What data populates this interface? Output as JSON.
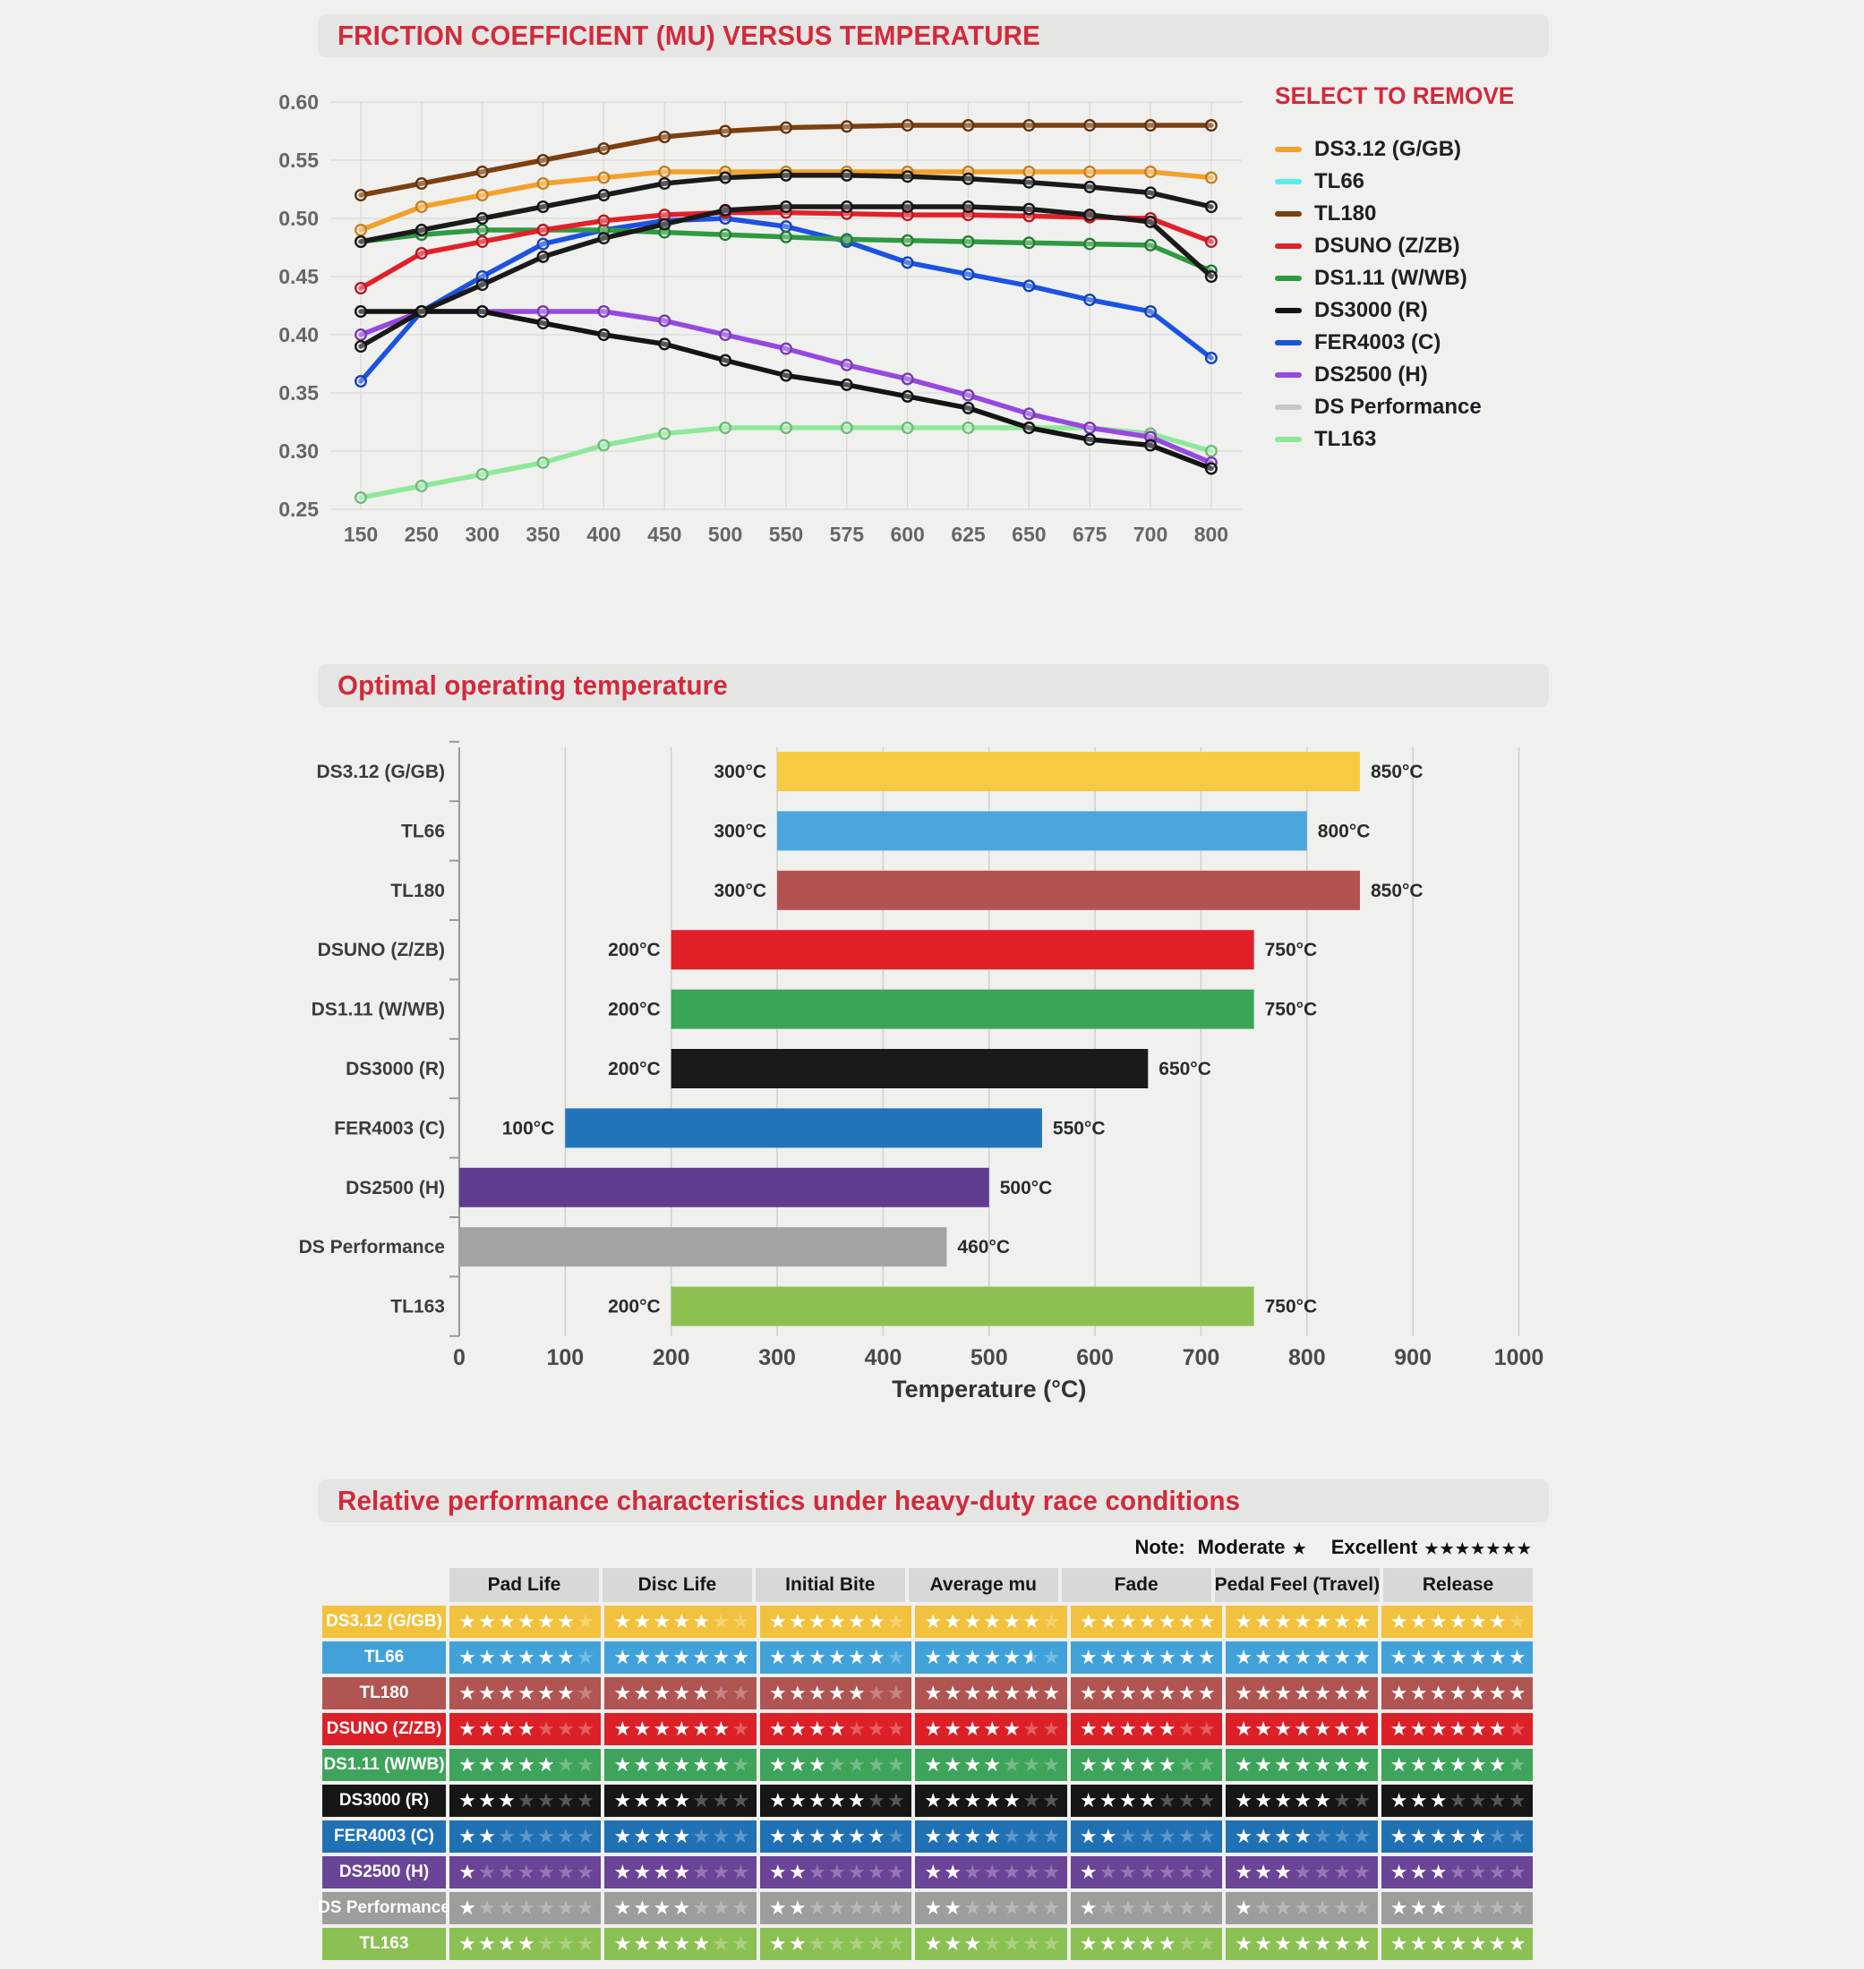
{
  "page": {
    "background": "#f0f0ef",
    "accent_red": "#d2293b",
    "banner_gray": "#e5e5e3"
  },
  "legend": {
    "title": "SELECT TO REMOVE"
  },
  "chart_data": [
    {
      "type": "line",
      "title": "FRICTION COEFFICIENT (MU) VERSUS TEMPERATURE",
      "legend_title": "SELECT TO REMOVE",
      "legend_position": "right",
      "grid": true,
      "xlabel": "",
      "ylabel": "",
      "x_categories": [
        150,
        250,
        300,
        350,
        400,
        450,
        500,
        550,
        575,
        600,
        625,
        650,
        675,
        700,
        800
      ],
      "ylim": [
        0.25,
        0.6
      ],
      "yticks": [
        0.6,
        0.55,
        0.5,
        0.45,
        0.4,
        0.35,
        0.3,
        0.25
      ],
      "series": [
        {
          "name": "DS3.12 (G/GB)",
          "legend_color": "#F4A12C",
          "line_color": "#F4A12C",
          "values": [
            0.49,
            0.51,
            0.52,
            0.53,
            0.535,
            0.54,
            0.54,
            0.54,
            0.54,
            0.54,
            0.54,
            0.54,
            0.54,
            0.54,
            0.535
          ]
        },
        {
          "name": "TL66",
          "legend_color": "#55EFEA",
          "line_color": "#1A1A1A",
          "values": [
            0.48,
            0.49,
            0.5,
            0.51,
            0.52,
            0.53,
            0.535,
            0.537,
            0.537,
            0.536,
            0.534,
            0.531,
            0.527,
            0.522,
            0.51
          ]
        },
        {
          "name": "TL180",
          "legend_color": "#7C400F",
          "line_color": "#7C400F",
          "values": [
            0.52,
            0.53,
            0.54,
            0.55,
            0.56,
            0.57,
            0.575,
            0.578,
            0.579,
            0.58,
            0.58,
            0.58,
            0.58,
            0.58,
            0.58
          ]
        },
        {
          "name": "DSUNO (Z/ZB)",
          "legend_color": "#E2202A",
          "line_color": "#E2202A",
          "values": [
            0.44,
            0.47,
            0.48,
            0.49,
            0.498,
            0.503,
            0.505,
            0.505,
            0.504,
            0.503,
            0.503,
            0.502,
            0.501,
            0.5,
            0.48
          ]
        },
        {
          "name": "DS1.11 (W/WB)",
          "legend_color": "#2E9A41",
          "line_color": "#2E9A41",
          "values": [
            0.48,
            0.486,
            0.49,
            0.49,
            0.49,
            0.488,
            0.486,
            0.484,
            0.482,
            0.481,
            0.48,
            0.479,
            0.478,
            0.477,
            0.455
          ]
        },
        {
          "name": "DS3000 (R)",
          "legend_color": "#141414",
          "line_color": "#141414",
          "values": [
            0.42,
            0.42,
            0.42,
            0.41,
            0.4,
            0.392,
            0.378,
            0.365,
            0.357,
            0.347,
            0.337,
            0.32,
            0.31,
            0.305,
            0.285
          ]
        },
        {
          "name": "FER4003 (C)",
          "legend_color": "#1C52E2",
          "line_color": "#1C52E2",
          "values": [
            0.36,
            0.42,
            0.45,
            0.478,
            0.49,
            0.498,
            0.5,
            0.493,
            0.48,
            0.462,
            0.452,
            0.442,
            0.43,
            0.42,
            0.38
          ]
        },
        {
          "name": "DS2500 (H)",
          "legend_color": "#9549E0",
          "line_color": "#9549E0",
          "values": [
            0.4,
            0.42,
            0.42,
            0.42,
            0.42,
            0.412,
            0.4,
            0.388,
            0.374,
            0.362,
            0.348,
            0.332,
            0.32,
            0.312,
            0.29
          ]
        },
        {
          "name": "DS Performance",
          "legend_color": "#C7C7C7",
          "line_color": "#1A1A1A",
          "values": [
            0.39,
            0.42,
            0.443,
            0.467,
            0.483,
            0.495,
            0.507,
            0.51,
            0.51,
            0.51,
            0.51,
            0.508,
            0.503,
            0.497,
            0.45
          ]
        },
        {
          "name": "TL163",
          "legend_color": "#8FE89A",
          "line_color": "#8FE89A",
          "values": [
            0.26,
            0.27,
            0.28,
            0.29,
            0.305,
            0.315,
            0.32,
            0.32,
            0.32,
            0.32,
            0.32,
            0.32,
            0.32,
            0.315,
            0.3
          ]
        }
      ]
    },
    {
      "type": "bar",
      "orientation": "horizontal",
      "title": "Optimal operating temperature",
      "xlabel": "Temperature (°C)",
      "xlim": [
        0,
        1000
      ],
      "xticks": [
        0,
        100,
        200,
        300,
        400,
        500,
        600,
        700,
        800,
        900,
        1000
      ],
      "grid": true,
      "bars": [
        {
          "name": "DS3.12 (G/GB)",
          "color": "#F7CB40",
          "start": 300,
          "end": 850,
          "start_label": "300°C",
          "end_label": "850°C"
        },
        {
          "name": "TL66",
          "color": "#4BA6DB",
          "start": 300,
          "end": 800,
          "start_label": "300°C",
          "end_label": "800°C"
        },
        {
          "name": "TL180",
          "color": "#B35351",
          "start": 300,
          "end": 850,
          "start_label": "300°C",
          "end_label": "850°C"
        },
        {
          "name": "DSUNO (Z/ZB)",
          "color": "#E01F26",
          "start": 200,
          "end": 750,
          "start_label": "200°C",
          "end_label": "750°C"
        },
        {
          "name": "DS1.11 (W/WB)",
          "color": "#3BA557",
          "start": 200,
          "end": 750,
          "start_label": "200°C",
          "end_label": "750°C"
        },
        {
          "name": "DS3000 (R)",
          "color": "#1A1A1A",
          "start": 200,
          "end": 650,
          "start_label": "200°C",
          "end_label": "650°C"
        },
        {
          "name": "FER4003 (C)",
          "color": "#2274B8",
          "start": 100,
          "end": 550,
          "start_label": "100°C",
          "end_label": "550°C"
        },
        {
          "name": "DS2500 (H)",
          "color": "#5F3C90",
          "start": 0,
          "end": 500,
          "start_label": "",
          "end_label": "500°C"
        },
        {
          "name": "DS Performance",
          "color": "#A3A3A3",
          "start": 0,
          "end": 460,
          "start_label": "",
          "end_label": "460°C"
        },
        {
          "name": "TL163",
          "color": "#8CC152",
          "start": 200,
          "end": 750,
          "start_label": "200°C",
          "end_label": "750°C"
        }
      ]
    },
    {
      "type": "table",
      "title": "Relative performance characteristics under heavy-duty race conditions",
      "note": {
        "prefix": "Note:",
        "levels": [
          {
            "label": "Moderate",
            "stars": 1
          },
          {
            "label": "Excellent",
            "stars": 7
          }
        ]
      },
      "max_stars": 7,
      "columns": [
        "Pad Life",
        "Disc Life",
        "Initial Bite",
        "Average mu",
        "Fade",
        "Pedal Feel (Travel)",
        "Release"
      ],
      "rows": [
        {
          "name": "DS3.12 (G/GB)",
          "color": "#F2C23E",
          "ratings": [
            6,
            5,
            6,
            6,
            7,
            7,
            6
          ]
        },
        {
          "name": "TL66",
          "color": "#41A2DA",
          "ratings": [
            6,
            7,
            6,
            5.5,
            7,
            7,
            7
          ]
        },
        {
          "name": "TL180",
          "color": "#B05552",
          "ratings": [
            6,
            5,
            5,
            7,
            7,
            7,
            7
          ]
        },
        {
          "name": "DSUNO (Z/ZB)",
          "color": "#DC2027",
          "ratings": [
            4,
            6,
            4,
            5,
            5,
            7,
            6
          ]
        },
        {
          "name": "DS1.11 (W/WB)",
          "color": "#3FA45B",
          "ratings": [
            5,
            6,
            3,
            4,
            5,
            7,
            6
          ]
        },
        {
          "name": "DS3000 (R)",
          "color": "#161616",
          "ratings": [
            3,
            4,
            5,
            5,
            4,
            5,
            3
          ]
        },
        {
          "name": "FER4003 (C)",
          "color": "#2071B4",
          "ratings": [
            2,
            4,
            6,
            4,
            2,
            4,
            5
          ]
        },
        {
          "name": "DS2500 (H)",
          "color": "#6A4496",
          "ratings": [
            1,
            4,
            2,
            2,
            1,
            3,
            3
          ]
        },
        {
          "name": "DS Performance",
          "color": "#9D9D9D",
          "ratings": [
            1,
            4,
            2,
            2,
            1,
            1,
            3
          ]
        },
        {
          "name": "TL163",
          "color": "#8BC053",
          "ratings": [
            4,
            5,
            2,
            3,
            5,
            7,
            7
          ]
        }
      ]
    }
  ]
}
